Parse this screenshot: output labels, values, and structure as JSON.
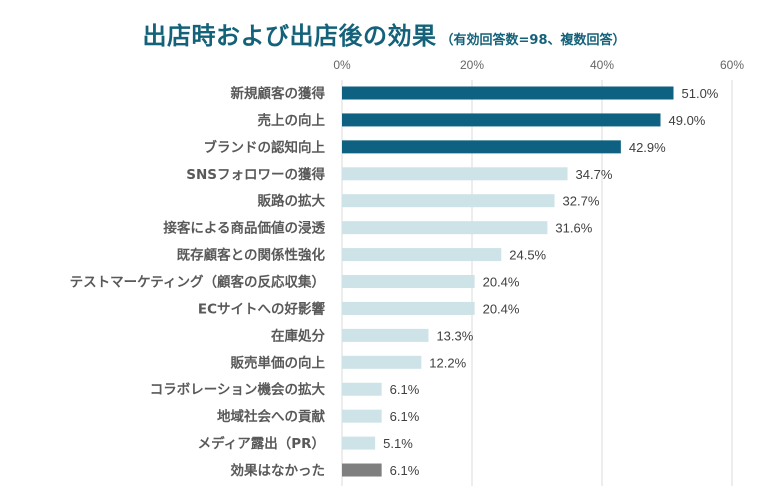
{
  "chart_data": {
    "type": "bar",
    "orientation": "horizontal",
    "title": "出店時および出店後の効果",
    "subtitle": "（有効回答数=98、複数回答）",
    "xlabel": "",
    "ylabel": "",
    "xlim": [
      0,
      60
    ],
    "x_ticks": [
      0,
      20,
      40,
      60
    ],
    "x_tick_labels": [
      "0%",
      "20%",
      "40%",
      "60%"
    ],
    "x_axis_position": "top",
    "grid": true,
    "legend": "none",
    "value_suffix": "%",
    "categories": [
      "新規顧客の獲得",
      "売上の向上",
      "ブランドの認知向上",
      "SNSフォロワーの獲得",
      "販路の拡大",
      "接客による商品価値の浸透",
      "既存顧客との関係性強化",
      "テストマーケティング（顧客の反応収集）",
      "ECサイトへの好影響",
      "在庫処分",
      "販売単価の向上",
      "コラボレーション機会の拡大",
      "地域社会への貢献",
      "メディア露出（PR）",
      "効果はなかった"
    ],
    "values": [
      51.0,
      49.0,
      42.9,
      34.7,
      32.7,
      31.6,
      24.5,
      20.4,
      20.4,
      13.3,
      12.2,
      6.1,
      6.1,
      5.1,
      6.1
    ],
    "value_labels": [
      "51.0%",
      "49.0%",
      "42.9%",
      "34.7%",
      "32.7%",
      "31.6%",
      "24.5%",
      "20.4%",
      "20.4%",
      "13.3%",
      "12.2%",
      "6.1%",
      "6.1%",
      "5.1%",
      "6.1%"
    ],
    "bar_colors": [
      "#0e6180",
      "#0e6180",
      "#0e6180",
      "#cde3e7",
      "#cde3e7",
      "#cde3e7",
      "#cde3e7",
      "#cde3e7",
      "#cde3e7",
      "#cde3e7",
      "#cde3e7",
      "#cde3e7",
      "#cde3e7",
      "#cde3e7",
      "#7f7f7f"
    ]
  },
  "colors": {
    "title": "#14627a",
    "highlight": "#0e6180",
    "normal": "#cde3e7",
    "none": "#7f7f7f",
    "grid": "#e3e3e3"
  }
}
